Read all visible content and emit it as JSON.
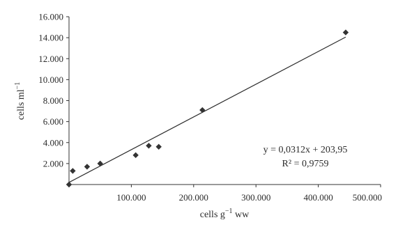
{
  "chart_data": {
    "type": "scatter",
    "title": "",
    "xlabel_parts": {
      "base": "cells g",
      "sup": "−1",
      "suffix": " ww"
    },
    "ylabel_parts": {
      "base": "cells ml",
      "sup": "−1"
    },
    "xlim": [
      0,
      500000
    ],
    "ylim": [
      0,
      16000
    ],
    "x_ticks": [
      {
        "value": 100000,
        "label": "100.000"
      },
      {
        "value": 200000,
        "label": "200.000"
      },
      {
        "value": 300000,
        "label": "300.000"
      },
      {
        "value": 400000,
        "label": "400.000"
      },
      {
        "value": 500000,
        "label": "500.000"
      }
    ],
    "y_ticks": [
      {
        "value": 2000,
        "label": "2.000"
      },
      {
        "value": 4000,
        "label": "4.000"
      },
      {
        "value": 6000,
        "label": "6.000"
      },
      {
        "value": 8000,
        "label": "8.000"
      },
      {
        "value": 10000,
        "label": "10.000"
      },
      {
        "value": 12000,
        "label": "12.000"
      },
      {
        "value": 14000,
        "label": "14.000"
      },
      {
        "value": 16000,
        "label": "16.000"
      }
    ],
    "grid": false,
    "series": [
      {
        "marker": "diamond",
        "points": [
          {
            "x": 0,
            "y": 0
          },
          {
            "x": 6000,
            "y": 1300
          },
          {
            "x": 29000,
            "y": 1700
          },
          {
            "x": 50000,
            "y": 2000
          },
          {
            "x": 107000,
            "y": 2800
          },
          {
            "x": 128000,
            "y": 3700
          },
          {
            "x": 144000,
            "y": 3600
          },
          {
            "x": 214000,
            "y": 7100
          },
          {
            "x": 444000,
            "y": 14500
          }
        ]
      }
    ],
    "trendline": {
      "slope": 0.0312,
      "intercept": 203.95,
      "x_range": [
        0,
        444000
      ],
      "equation_label": "y = 0,0312x + 203,95",
      "r2_label": "R² = 0,9759"
    }
  }
}
